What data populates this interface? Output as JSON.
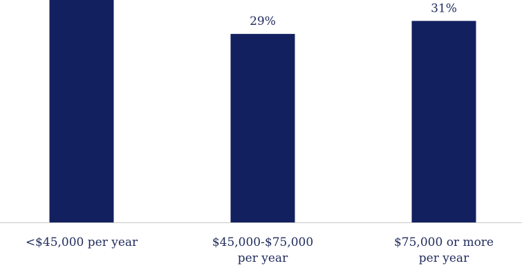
{
  "chart_data": {
    "type": "bar",
    "categories": [
      [
        "<$45,000 per year"
      ],
      [
        "$45,000-$75,000",
        "per year"
      ],
      [
        "$75,000 or more",
        "per year"
      ]
    ],
    "values": [
      40,
      29,
      31
    ],
    "value_labels": [
      "",
      "29%",
      "31%"
    ],
    "bar_color": "#13205f",
    "axis_color": "#c8c8c8",
    "text_color": "#1f2a5c",
    "title": "",
    "xlabel": "",
    "ylabel": "",
    "grid": false,
    "legend": "none"
  }
}
